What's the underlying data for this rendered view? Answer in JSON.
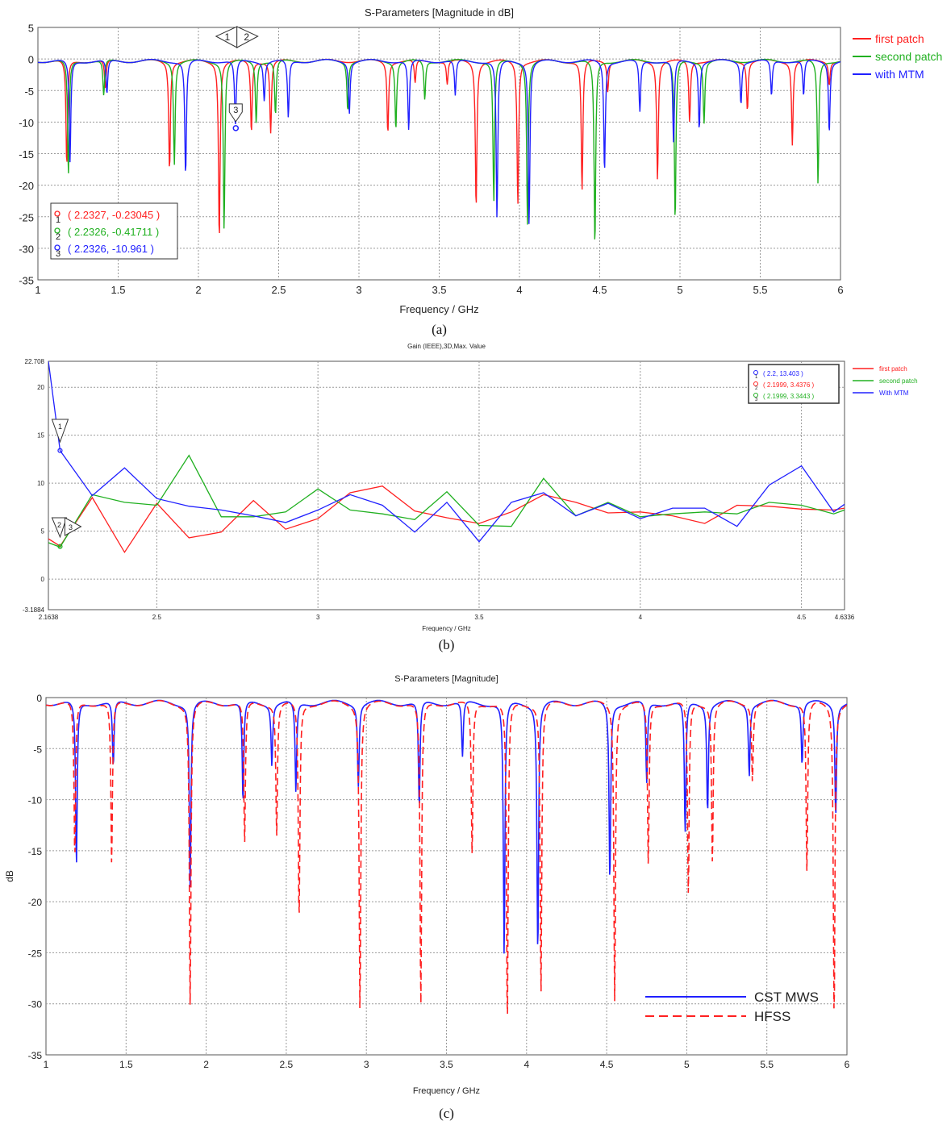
{
  "colors": {
    "red": "#ff2020",
    "green": "#20b020",
    "blue": "#2020ff",
    "grid": "#9a9a9a"
  },
  "chart_data": [
    {
      "type": "line",
      "title": "S-Parameters [Magnitude in dB]",
      "xlabel": "Frequency / GHz",
      "ylabel": "",
      "caption": "(a)",
      "xlim": [
        1,
        6
      ],
      "ylim": [
        -35,
        5
      ],
      "xticks": [
        "1",
        "1.5",
        "2",
        "2.5",
        "3",
        "3.5",
        "4",
        "4.5",
        "5",
        "5.5",
        "6"
      ],
      "yticks": [
        "5",
        "0",
        "-5",
        "-10",
        "-15",
        "-20",
        "-25",
        "-30",
        "-35"
      ],
      "grid": true,
      "legend_position": "right, outside",
      "baseline": -0.3,
      "series": [
        {
          "name": "first patch",
          "color": "#ff2020",
          "dips": [
            [
              1.18,
              -17.2
            ],
            [
              1.42,
              -5.0
            ],
            [
              1.82,
              -17.5
            ],
            [
              2.13,
              -28.5
            ],
            [
              2.33,
              -11.6
            ],
            [
              2.45,
              -11.7
            ],
            [
              3.18,
              -11.6
            ],
            [
              3.35,
              -4.0
            ],
            [
              3.55,
              -4.0
            ],
            [
              3.73,
              -23.5
            ],
            [
              3.99,
              -23.0
            ],
            [
              4.39,
              -21.0
            ],
            [
              4.55,
              -5.0
            ],
            [
              4.86,
              -19.0
            ],
            [
              5.06,
              -10.0
            ],
            [
              5.42,
              -8.0
            ],
            [
              5.7,
              -13.5
            ],
            [
              5.93,
              -4.0
            ]
          ]
        },
        {
          "name": "second patch",
          "color": "#20b020",
          "dips": [
            [
              1.19,
              -18.5
            ],
            [
              1.41,
              -6.0
            ],
            [
              1.85,
              -16.5
            ],
            [
              2.16,
              -27.0
            ],
            [
              2.36,
              -10.0
            ],
            [
              2.48,
              -9.0
            ],
            [
              2.93,
              -8.0
            ],
            [
              3.23,
              -11.0
            ],
            [
              3.41,
              -6.5
            ],
            [
              3.84,
              -22.8
            ],
            [
              4.05,
              -26.0
            ],
            [
              4.47,
              -30.0
            ],
            [
              4.97,
              -26.0
            ],
            [
              5.15,
              -10.0
            ],
            [
              5.86,
              -20.0
            ]
          ]
        },
        {
          "name": "with MTM",
          "color": "#2020ff",
          "dips": [
            [
              1.2,
              -16.5
            ],
            [
              1.43,
              -5.8
            ],
            [
              1.92,
              -18.5
            ],
            [
              2.23,
              -10.96
            ],
            [
              2.41,
              -6.5
            ],
            [
              2.56,
              -9.5
            ],
            [
              2.94,
              -8.5
            ],
            [
              3.31,
              -11.5
            ],
            [
              3.6,
              -6.0
            ],
            [
              3.86,
              -25.5
            ],
            [
              4.06,
              -26.2
            ],
            [
              4.53,
              -17.8
            ],
            [
              4.75,
              -8.5
            ],
            [
              4.96,
              -13.5
            ],
            [
              5.12,
              -11.0
            ],
            [
              5.38,
              -7.0
            ],
            [
              5.57,
              -6.0
            ],
            [
              5.77,
              -6.0
            ],
            [
              5.93,
              -11.5
            ]
          ]
        }
      ],
      "markers": [
        {
          "id": "1",
          "x": 2.2327,
          "y": -0.23045,
          "label": "( 2.2327, -0.23045 )",
          "color": "#ff2020"
        },
        {
          "id": "2",
          "x": 2.2326,
          "y": -0.41711,
          "label": "( 2.2326, -0.41711 )",
          "color": "#20b020"
        },
        {
          "id": "3",
          "x": 2.2326,
          "y": -10.961,
          "label": "( 2.2326, -10.961 )",
          "color": "#2020ff"
        }
      ]
    },
    {
      "type": "line",
      "title": "Gain (IEEE),3D,Max. Value",
      "xlabel": "Frequency / GHz",
      "ylabel": "",
      "caption": "(b)",
      "xlim": [
        2.1638,
        4.6336
      ],
      "ylim": [
        -3.1884,
        22.708
      ],
      "xticks": [
        "2.1638",
        "2.5",
        "3",
        "3.5",
        "4",
        "4.5",
        "4.6336"
      ],
      "yticks": [
        "22.708",
        "20",
        "15",
        "10",
        "5",
        "0",
        "-3.1884"
      ],
      "grid": true,
      "legend_position": "right, outside",
      "series": [
        {
          "name": "first patch",
          "color": "#ff2020",
          "x": [
            2.1638,
            2.2,
            2.3,
            2.4,
            2.5,
            2.6,
            2.7,
            2.8,
            2.9,
            3.0,
            3.1,
            3.2,
            3.3,
            3.4,
            3.5,
            3.6,
            3.7,
            3.8,
            3.9,
            4.0,
            4.1,
            4.2,
            4.3,
            4.4,
            4.5,
            4.6,
            4.6336
          ],
          "y": [
            4.2,
            3.44,
            8.5,
            2.8,
            7.9,
            4.3,
            4.9,
            8.2,
            5.2,
            6.3,
            9.0,
            9.7,
            7.1,
            6.4,
            5.8,
            7.0,
            8.8,
            8.0,
            6.9,
            7.0,
            6.6,
            5.8,
            7.7,
            7.6,
            7.3,
            7.2,
            7.4
          ]
        },
        {
          "name": "second patch",
          "color": "#20b020",
          "x": [
            2.1638,
            2.2,
            2.3,
            2.4,
            2.5,
            2.6,
            2.7,
            2.8,
            2.9,
            3.0,
            3.1,
            3.2,
            3.3,
            3.4,
            3.5,
            3.6,
            3.7,
            3.8,
            3.9,
            4.0,
            4.1,
            4.2,
            4.3,
            4.4,
            4.5,
            4.6,
            4.6336
          ],
          "y": [
            3.8,
            3.34,
            8.8,
            8.0,
            7.7,
            12.9,
            6.5,
            6.5,
            7.0,
            9.4,
            7.2,
            6.8,
            6.2,
            9.1,
            5.6,
            5.5,
            10.5,
            6.6,
            8.0,
            6.5,
            6.8,
            7.0,
            6.8,
            8.0,
            7.7,
            6.8,
            7.2
          ]
        },
        {
          "name": "With MTM",
          "color": "#2020ff",
          "x": [
            2.1638,
            2.2,
            2.3,
            2.4,
            2.5,
            2.6,
            2.7,
            2.8,
            2.9,
            3.0,
            3.1,
            3.2,
            3.3,
            3.4,
            3.5,
            3.6,
            3.7,
            3.8,
            3.9,
            4.0,
            4.1,
            4.2,
            4.3,
            4.4,
            4.5,
            4.6,
            4.6336
          ],
          "y": [
            22.708,
            13.403,
            8.7,
            11.6,
            8.4,
            7.6,
            7.2,
            6.6,
            5.9,
            7.2,
            8.8,
            7.7,
            4.9,
            8.0,
            3.9,
            8.0,
            9.0,
            6.6,
            7.9,
            6.3,
            7.4,
            7.4,
            5.5,
            9.8,
            11.8,
            7.0,
            7.8
          ]
        }
      ],
      "marker_box": [
        {
          "id": "1",
          "label": "( 2.2, 13.403 )",
          "color": "#2020ff"
        },
        {
          "id": "2",
          "label": "( 2.1999, 3.4376 )",
          "color": "#ff2020"
        },
        {
          "id": "3",
          "label": "( 2.1999, 3.3443 )",
          "color": "#20b020"
        }
      ]
    },
    {
      "type": "line",
      "title": "S-Parameters [Magnitude]",
      "xlabel": "Frequency / GHz",
      "ylabel": "dB",
      "caption": "(c)",
      "xlim": [
        1,
        6
      ],
      "ylim": [
        -35,
        0
      ],
      "xticks": [
        "1",
        "1.5",
        "2",
        "2.5",
        "3",
        "3.5",
        "4",
        "4.5",
        "5",
        "5.5",
        "6"
      ],
      "yticks": [
        "0",
        "-5",
        "-10",
        "-15",
        "-20",
        "-25",
        "-30",
        "-35"
      ],
      "grid": true,
      "legend_position": "bottom-right, inside",
      "baseline": -0.5,
      "series": [
        {
          "name": "CST MWS",
          "color": "#2020ff",
          "style": "solid",
          "dips": [
            [
              1.19,
              -16.5
            ],
            [
              1.42,
              -7.0
            ],
            [
              1.9,
              -18.5
            ],
            [
              2.23,
              -10.5
            ],
            [
              2.41,
              -6.5
            ],
            [
              2.56,
              -9.5
            ],
            [
              2.95,
              -8.5
            ],
            [
              3.33,
              -11.0
            ],
            [
              3.6,
              -6.0
            ],
            [
              3.86,
              -25.5
            ],
            [
              4.07,
              -25.0
            ],
            [
              4.52,
              -18.0
            ],
            [
              4.75,
              -8.5
            ],
            [
              4.99,
              -13.5
            ],
            [
              5.13,
              -11.0
            ],
            [
              5.39,
              -7.5
            ],
            [
              5.72,
              -6.5
            ],
            [
              5.93,
              -11.5
            ]
          ]
        },
        {
          "name": "HFSS",
          "color": "#ff2020",
          "style": "dashed",
          "dips": [
            [
              1.18,
              -16.0
            ],
            [
              1.41,
              -16.5
            ],
            [
              1.9,
              -30.0
            ],
            [
              2.24,
              -14.5
            ],
            [
              2.44,
              -13.5
            ],
            [
              2.58,
              -22.0
            ],
            [
              2.96,
              -30.5
            ],
            [
              3.34,
              -30.5
            ],
            [
              3.66,
              -15.5
            ],
            [
              3.88,
              -32.5
            ],
            [
              4.09,
              -29.0
            ],
            [
              4.55,
              -29.5
            ],
            [
              4.76,
              -16.5
            ],
            [
              5.01,
              -19.5
            ],
            [
              5.16,
              -16.0
            ],
            [
              5.41,
              -8.0
            ],
            [
              5.75,
              -17.0
            ],
            [
              5.92,
              -31.5
            ]
          ]
        }
      ]
    }
  ]
}
